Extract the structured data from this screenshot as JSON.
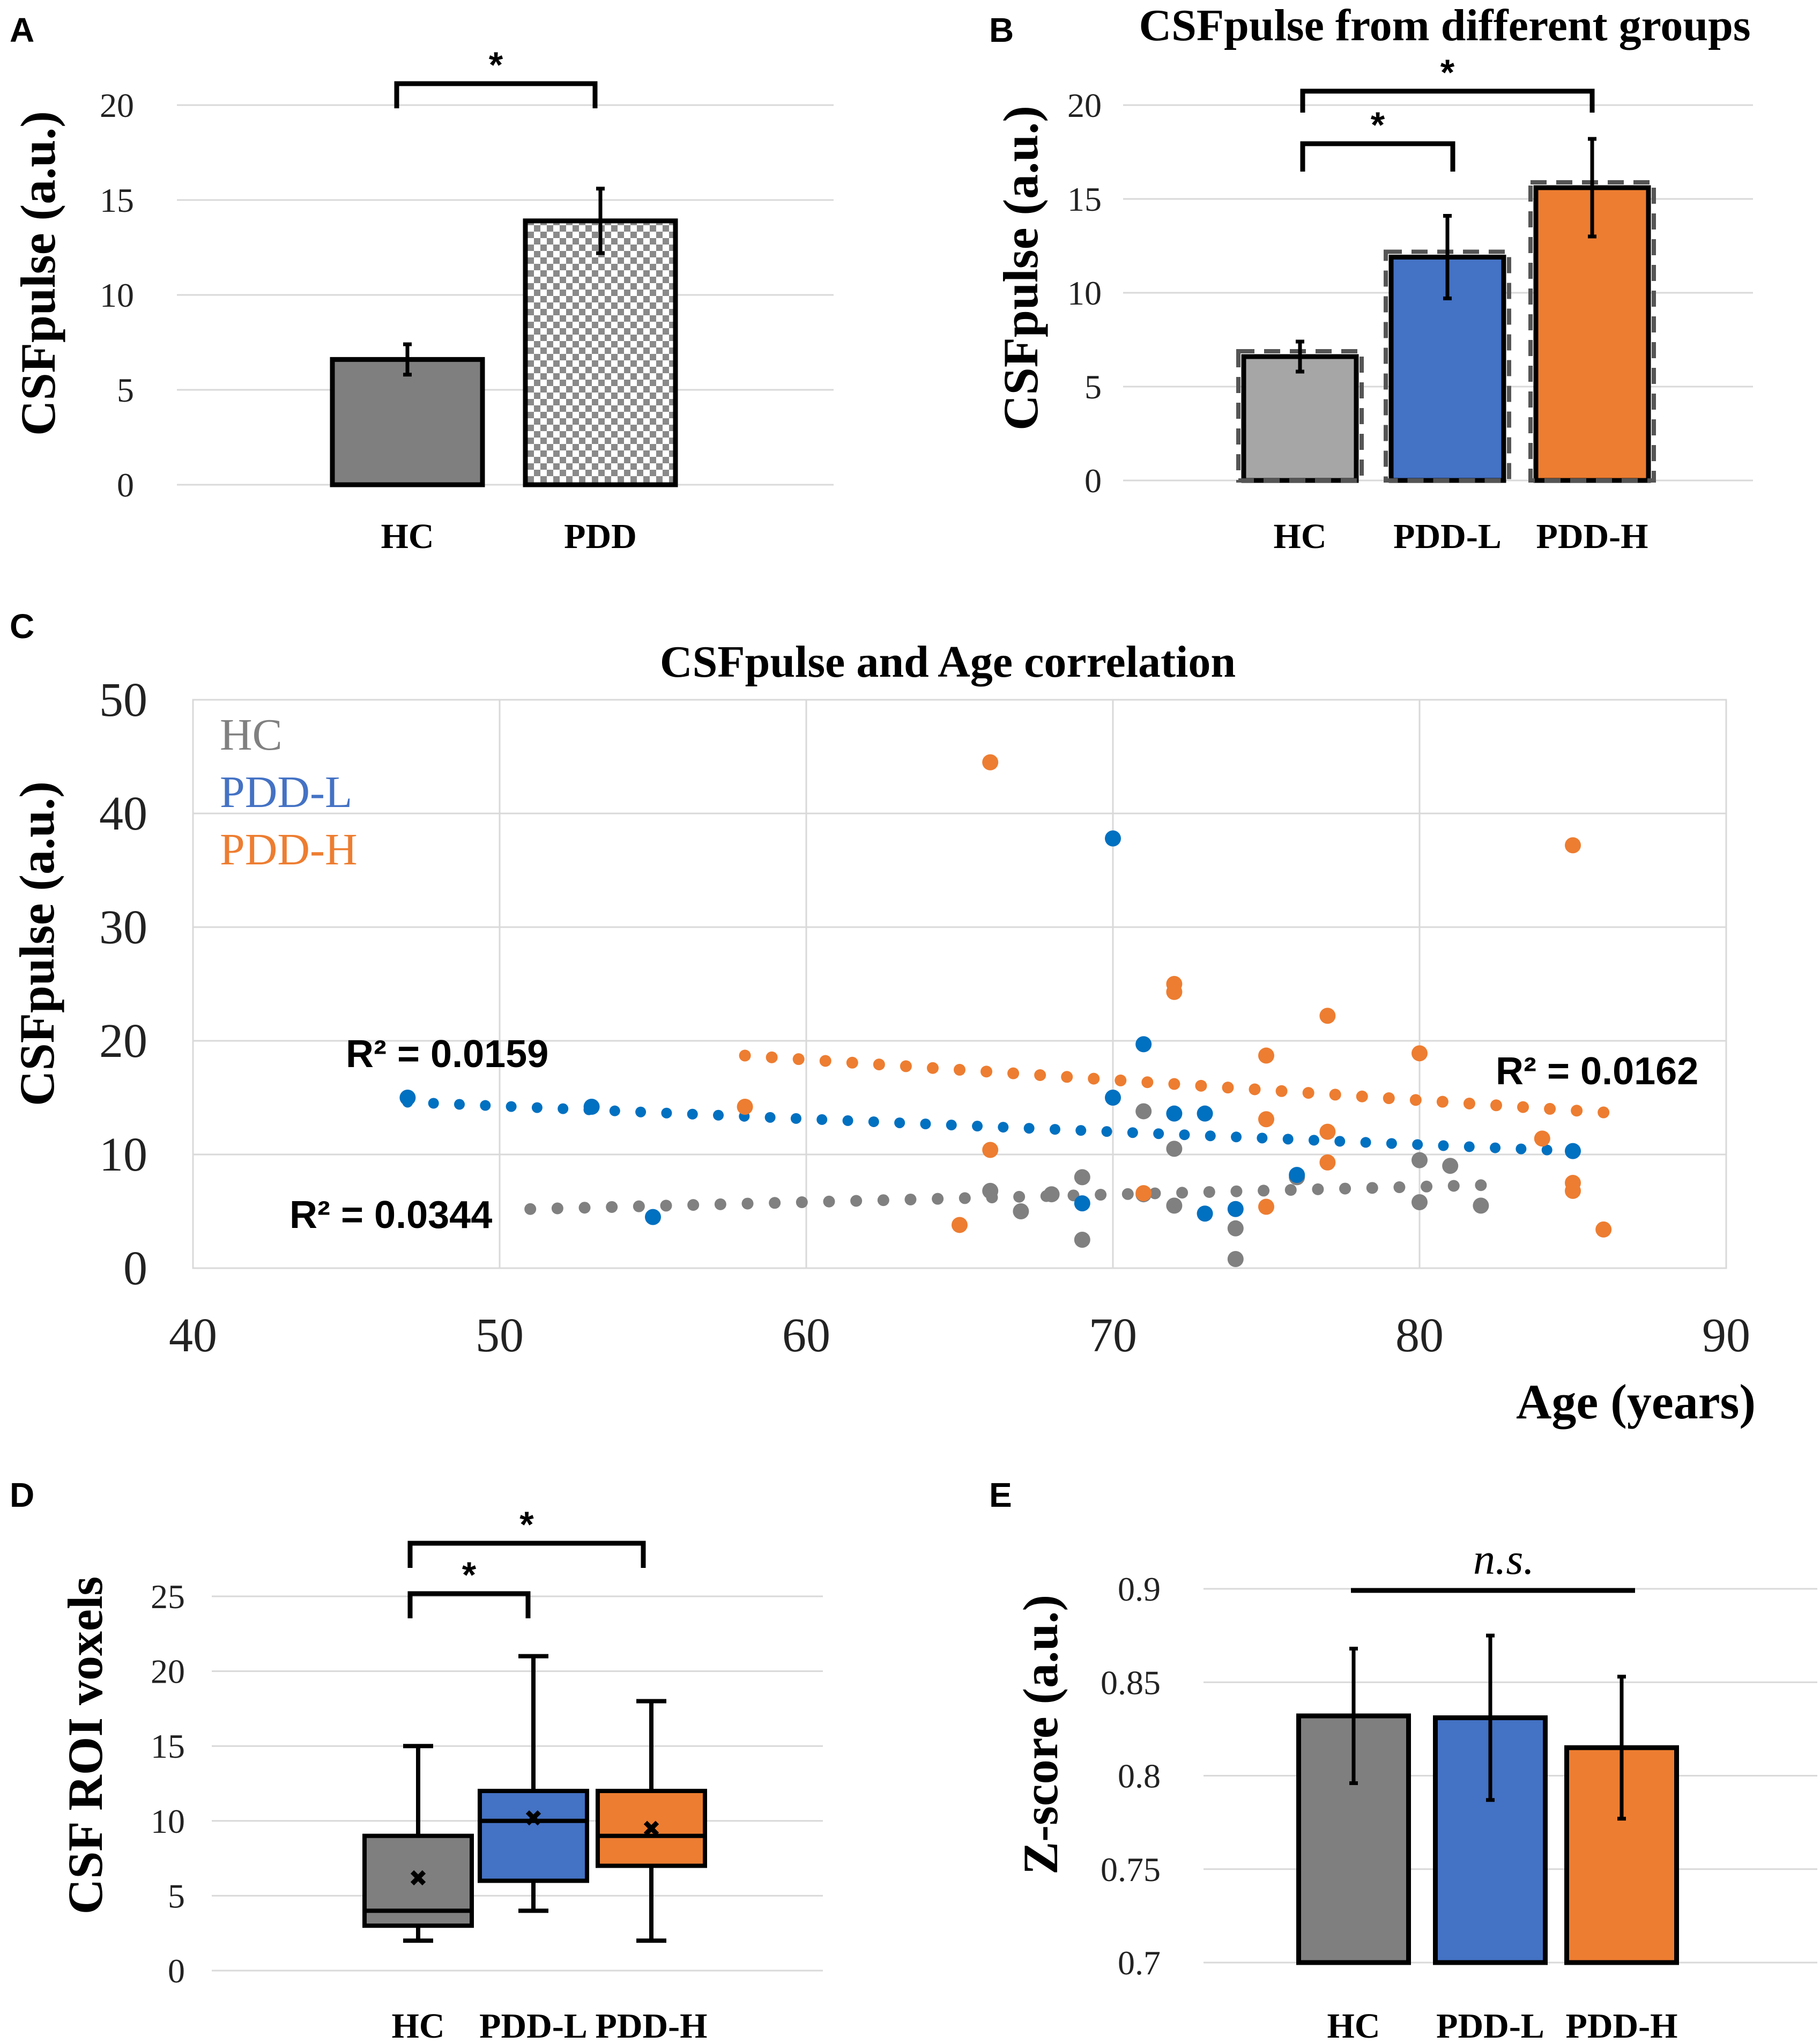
{
  "colors": {
    "hc_gray": "#7f7f7f",
    "hc_light": "#a6a6a6",
    "pdd_blue": "#4472c4",
    "pdd_orange": "#ed7d31",
    "scatter_blue": "#0070c0",
    "scatter_gray": "#808080"
  },
  "panels": {
    "A": {
      "letter": "A"
    },
    "B": {
      "letter": "B"
    },
    "C": {
      "letter": "C"
    },
    "D": {
      "letter": "D"
    },
    "E": {
      "letter": "E"
    }
  },
  "chart_data": [
    {
      "id": "A",
      "type": "bar",
      "title": "",
      "ylabel": "CSFpulse (a.u.)",
      "ylim": [
        0,
        20
      ],
      "yticks": [
        0,
        5,
        10,
        15,
        20
      ],
      "categories": [
        "HC",
        "PDD"
      ],
      "values": [
        6.6,
        13.9
      ],
      "errors": [
        0.8,
        1.7
      ],
      "fills": [
        "solid-gray",
        "checkered"
      ],
      "significance": [
        {
          "from": 0,
          "to": 1,
          "label": "*"
        }
      ]
    },
    {
      "id": "B",
      "type": "bar",
      "title": "CSFpulse from different groups",
      "ylabel": "CSFpulse (a.u.)",
      "ylim": [
        0,
        20
      ],
      "yticks": [
        0,
        5,
        10,
        15,
        20
      ],
      "categories": [
        "HC",
        "PDD-L",
        "PDD-H"
      ],
      "values": [
        6.6,
        11.9,
        15.6
      ],
      "errors": [
        0.8,
        2.2,
        2.6
      ],
      "significance": [
        {
          "from": 0,
          "to": 1,
          "label": "*"
        },
        {
          "from": 0,
          "to": 2,
          "label": "*"
        }
      ]
    },
    {
      "id": "C",
      "type": "scatter",
      "title": "CSFpulse and Age correlation",
      "xlabel": "Age (years)",
      "ylabel": "CSFpulse (a.u.)",
      "xlim": [
        40,
        90
      ],
      "ylim": [
        0,
        50
      ],
      "xticks": [
        40,
        50,
        60,
        70,
        80,
        90
      ],
      "yticks": [
        0,
        10,
        20,
        30,
        40,
        50
      ],
      "grid": true,
      "legend_position": "top-left",
      "series": [
        {
          "name": "HC",
          "color_key": "scatter_gray",
          "points": [
            [
              66,
              6.8
            ],
            [
              67,
              5.0
            ],
            [
              68,
              6.5
            ],
            [
              69,
              8.0
            ],
            [
              69,
              2.5
            ],
            [
              71,
              13.8
            ],
            [
              71,
              6.5
            ],
            [
              72,
              10.5
            ],
            [
              72,
              5.5
            ],
            [
              74,
              3.5
            ],
            [
              74,
              0.8
            ],
            [
              76,
              8.0
            ],
            [
              80,
              9.5
            ],
            [
              80,
              5.8
            ],
            [
              81,
              9.0
            ],
            [
              82,
              5.5
            ]
          ],
          "trend": {
            "x0": 51,
            "y0": 5.2,
            "x1": 82,
            "y1": 7.3
          },
          "r2": "R² = 0.0344"
        },
        {
          "name": "PDD-L",
          "color_key": "scatter_blue",
          "points": [
            [
              47,
              15.0
            ],
            [
              53,
              14.2
            ],
            [
              55,
              4.5
            ],
            [
              69,
              5.7
            ],
            [
              70,
              37.8
            ],
            [
              70,
              15.0
            ],
            [
              71,
              19.7
            ],
            [
              72,
              13.6
            ],
            [
              73,
              13.6
            ],
            [
              73,
              4.8
            ],
            [
              74,
              5.2
            ],
            [
              76,
              8.2
            ],
            [
              85,
              10.3
            ]
          ],
          "trend": {
            "x0": 47,
            "y0": 14.6,
            "x1": 85,
            "y1": 10.3
          },
          "r2": "R² = 0.0159"
        },
        {
          "name": "PDD-H",
          "color_key": "pdd_orange",
          "points": [
            [
              58,
              14.2
            ],
            [
              65,
              3.8
            ],
            [
              66,
              44.5
            ],
            [
              66,
              10.4
            ],
            [
              71,
              6.6
            ],
            [
              72,
              25.0
            ],
            [
              72,
              24.3
            ],
            [
              75,
              18.7
            ],
            [
              75,
              13.1
            ],
            [
              75,
              5.4
            ],
            [
              77,
              22.2
            ],
            [
              77,
              12.0
            ],
            [
              77,
              9.3
            ],
            [
              80,
              18.9
            ],
            [
              84,
              11.4
            ],
            [
              85,
              37.2
            ],
            [
              85,
              7.5
            ],
            [
              85,
              6.8
            ],
            [
              86,
              3.4
            ]
          ],
          "trend": {
            "x0": 58,
            "y0": 18.7,
            "x1": 86,
            "y1": 13.7
          },
          "r2": "R² = 0.0162"
        }
      ]
    },
    {
      "id": "D",
      "type": "box",
      "title": "",
      "ylabel": "CSF ROI voxels",
      "ylim": [
        0,
        25
      ],
      "yticks": [
        0,
        5,
        10,
        15,
        20,
        25
      ],
      "categories": [
        "HC",
        "PDD-L",
        "PDD-H"
      ],
      "boxes": [
        {
          "min": 2,
          "q1": 3,
          "median": 4,
          "q3": 9,
          "max": 15,
          "mean": 6.2
        },
        {
          "min": 4,
          "q1": 6,
          "median": 10,
          "q3": 12,
          "max": 21,
          "mean": 10.2
        },
        {
          "min": 2,
          "q1": 7,
          "median": 9,
          "q3": 12,
          "max": 18,
          "mean": 9.5
        }
      ],
      "significance": [
        {
          "from": 0,
          "to": 1,
          "label": "*"
        },
        {
          "from": 0,
          "to": 2,
          "label": "*"
        }
      ]
    },
    {
      "id": "E",
      "type": "bar",
      "title": "",
      "ylabel": "Z-score (a.u.)",
      "ylim": [
        0.7,
        0.9
      ],
      "yticks": [
        0.7,
        0.75,
        0.8,
        0.85,
        0.9
      ],
      "ytick_labels": [
        "0.7",
        "0.75",
        "0.8",
        "0.85",
        "0.9"
      ],
      "categories": [
        "HC",
        "PDD-L",
        "PDD-H"
      ],
      "values": [
        0.832,
        0.831,
        0.815
      ],
      "errors": [
        0.036,
        0.044,
        0.038
      ],
      "significance_label": "n.s."
    }
  ]
}
